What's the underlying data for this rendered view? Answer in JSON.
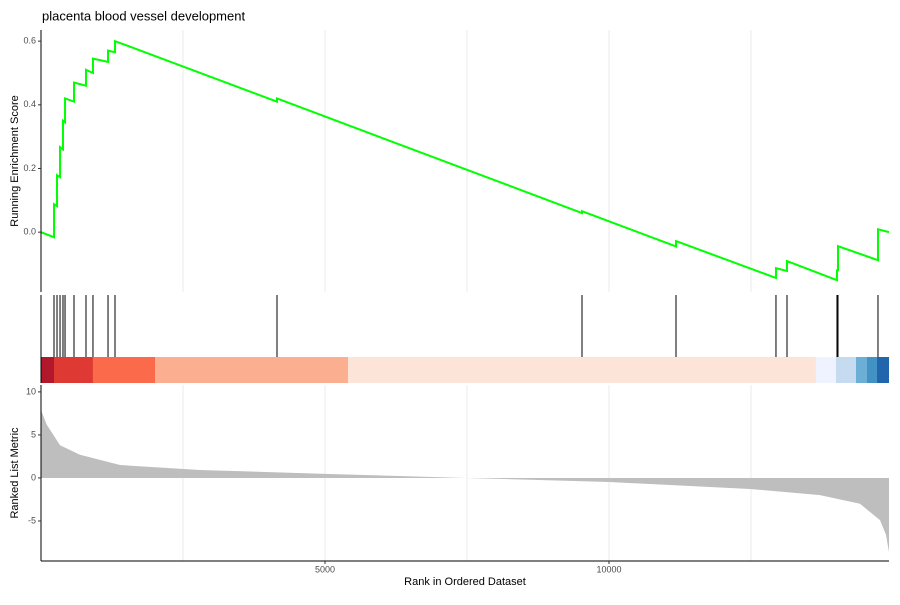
{
  "chart_data": [
    {
      "type": "line",
      "title": "placenta blood vessel development",
      "ylabel": "Running Enrichment Score",
      "x": [
        0,
        229,
        229,
        282,
        282,
        335,
        335,
        387,
        387,
        423,
        423,
        581,
        581,
        792,
        792,
        915,
        915,
        1180,
        1180,
        1303,
        1303,
        4155,
        4155,
        9525,
        9525,
        11180,
        11180,
        12940,
        12940,
        13134,
        13134,
        14014,
        14014,
        14032,
        14032,
        14736,
        14736,
        14930
      ],
      "series": [
        {
          "color": "#00ff00",
          "values": [
            0,
            -0.016,
            0.088,
            0.082,
            0.179,
            0.173,
            0.267,
            0.26,
            0.35,
            0.345,
            0.42,
            0.41,
            0.47,
            0.46,
            0.51,
            0.5,
            0.545,
            0.535,
            0.57,
            0.565,
            0.6,
            0.41,
            0.42,
            0.06,
            0.066,
            -0.045,
            -0.028,
            -0.144,
            -0.113,
            -0.122,
            -0.091,
            -0.151,
            -0.12,
            -0.12,
            -0.044,
            -0.088,
            0.009,
            0
          ]
        }
      ],
      "xlim": [
        0,
        14930
      ],
      "ylim": [
        -0.188,
        0.635
      ],
      "yticks": [
        {
          "value": 0,
          "label": "0.0"
        },
        0.2,
        0.4,
        0.6
      ],
      "xgrid": [
        2500,
        5000,
        7500,
        10000,
        12500
      ]
    },
    {
      "type": "rug",
      "x": [
        229,
        282,
        335,
        387,
        423,
        581,
        792,
        915,
        1180,
        1303,
        4155,
        9525,
        11180,
        12940,
        13134,
        14014,
        14032,
        14736
      ],
      "color": "#000000",
      "xlim": [
        0,
        14930
      ],
      "bands": [
        {
          "start": 0,
          "end": 229,
          "color": "#b2182b"
        },
        {
          "start": 229,
          "end": 915,
          "color": "#de3a33"
        },
        {
          "start": 915,
          "end": 2007,
          "color": "#fb6a4a"
        },
        {
          "start": 2007,
          "end": 5405,
          "color": "#fcae91"
        },
        {
          "start": 5405,
          "end": 13644,
          "color": "#fde4d9"
        },
        {
          "start": 13644,
          "end": 13996,
          "color": "#eff3ff"
        },
        {
          "start": 13996,
          "end": 14349,
          "color": "#c6dbef"
        },
        {
          "start": 14349,
          "end": 14542,
          "color": "#6baed6"
        },
        {
          "start": 14542,
          "end": 14718,
          "color": "#4292c6"
        },
        {
          "start": 14718,
          "end": 14930,
          "color": "#2166ac"
        }
      ]
    },
    {
      "type": "area",
      "ylabel": "Ranked List Metric",
      "xlabel": "Rank in Ordered Dataset",
      "x": [
        0,
        100,
        335,
        686,
        1391,
        2800,
        5000,
        7480,
        10000,
        12482,
        13715,
        14419,
        14771,
        14877,
        14930
      ],
      "values": [
        7.9,
        6.2,
        3.8,
        2.7,
        1.5,
        0.93,
        0.47,
        0,
        -0.47,
        -1.28,
        -2.0,
        -3.0,
        -4.9,
        -6.6,
        -8.6
      ],
      "color": "#bebebe",
      "xlim": [
        0,
        14930
      ],
      "ylim": [
        -9.65,
        10.8
      ],
      "yticks": [
        -5,
        0,
        5,
        10
      ],
      "xticks": [
        5000,
        10000
      ],
      "xgrid": [
        2500,
        5000,
        7500,
        10000,
        12500
      ]
    }
  ]
}
